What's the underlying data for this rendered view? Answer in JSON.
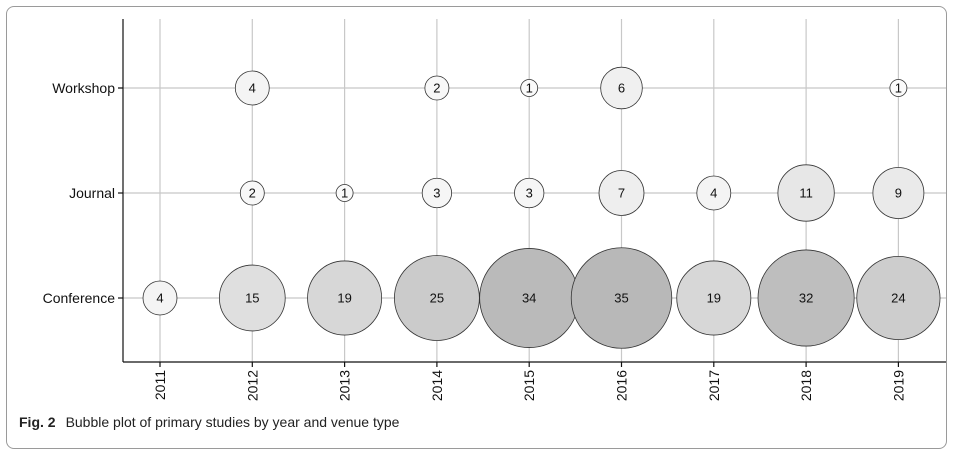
{
  "caption": {
    "label": "Fig. 2",
    "text": "Bubble plot of primary studies by year and venue type"
  },
  "chart_data": {
    "type": "scatter",
    "subtype": "bubble",
    "x": [
      "2011",
      "2012",
      "2013",
      "2014",
      "2015",
      "2016",
      "2017",
      "2018",
      "2019"
    ],
    "y_categories": [
      "Conference",
      "Journal",
      "Workshop"
    ],
    "grid": true,
    "legend": "none",
    "colors": {
      "grid": "#c8c8c8",
      "bubble_light": "#ffffff",
      "bubble_dark": "#b8b8b8",
      "stroke": "#333333"
    },
    "points": [
      {
        "year": "2011",
        "venue": "Conference",
        "count": 4
      },
      {
        "year": "2012",
        "venue": "Conference",
        "count": 15
      },
      {
        "year": "2013",
        "venue": "Conference",
        "count": 19
      },
      {
        "year": "2014",
        "venue": "Conference",
        "count": 25
      },
      {
        "year": "2015",
        "venue": "Conference",
        "count": 34
      },
      {
        "year": "2016",
        "venue": "Conference",
        "count": 35
      },
      {
        "year": "2017",
        "venue": "Conference",
        "count": 19
      },
      {
        "year": "2018",
        "venue": "Conference",
        "count": 32
      },
      {
        "year": "2019",
        "venue": "Conference",
        "count": 24
      },
      {
        "year": "2012",
        "venue": "Journal",
        "count": 2
      },
      {
        "year": "2013",
        "venue": "Journal",
        "count": 1
      },
      {
        "year": "2014",
        "venue": "Journal",
        "count": 3
      },
      {
        "year": "2015",
        "venue": "Journal",
        "count": 3
      },
      {
        "year": "2016",
        "venue": "Journal",
        "count": 7
      },
      {
        "year": "2017",
        "venue": "Journal",
        "count": 4
      },
      {
        "year": "2018",
        "venue": "Journal",
        "count": 11
      },
      {
        "year": "2019",
        "venue": "Journal",
        "count": 9
      },
      {
        "year": "2012",
        "venue": "Workshop",
        "count": 4
      },
      {
        "year": "2014",
        "venue": "Workshop",
        "count": 2
      },
      {
        "year": "2015",
        "venue": "Workshop",
        "count": 1
      },
      {
        "year": "2016",
        "venue": "Workshop",
        "count": 6
      },
      {
        "year": "2019",
        "venue": "Workshop",
        "count": 1
      }
    ]
  }
}
